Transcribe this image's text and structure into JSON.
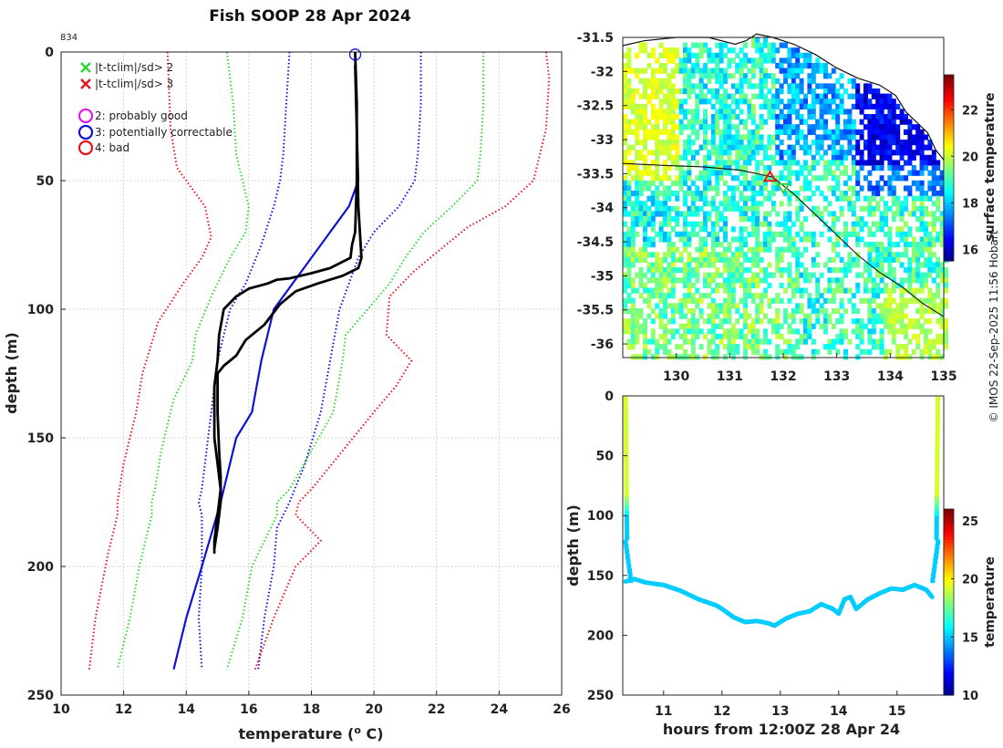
{
  "title": "Fish SOOP 28 Apr 2024",
  "profile_id": "834",
  "credit": "© IMOS 22-Sep-2025 11:56 Hobart",
  "colors": {
    "red": "#e8141b",
    "green": "#2fd633",
    "blue": "#1010d8",
    "black": "#000000",
    "magenta": "#e61ae6",
    "grid": "#c8c8c8"
  },
  "chart_data": [
    {
      "type": "line",
      "name": "profile",
      "xlabel": "temperature (",
      "xlabel_sup": "o",
      "xlabel_suffix": " C)",
      "ylabel": "depth (m)",
      "xlim": [
        10,
        26
      ],
      "ylim": [
        250,
        0
      ],
      "xticks": [
        "10",
        "12",
        "14",
        "16",
        "18",
        "20",
        "22",
        "24",
        "26"
      ],
      "yticks": [
        "0",
        "50",
        "100",
        "150",
        "200",
        "250"
      ],
      "grid": true,
      "legend": [
        {
          "symbol": "x",
          "color": "#2fd633",
          "label": "|t-tclim|/sd> 2"
        },
        {
          "symbol": "x",
          "color": "#e8141b",
          "label": "|t-tclim|/sd> 3"
        },
        {
          "symbol": "o",
          "color": "#e61ae6",
          "label": "2: probably good"
        },
        {
          "symbol": "o",
          "color": "#1010d8",
          "label": "3: potentially correctable"
        },
        {
          "symbol": "o",
          "color": "#e8141b",
          "label": "4: bad"
        }
      ],
      "series": [
        {
          "name": "clim mean",
          "style": "solid",
          "color": "#1010d8",
          "points": [
            [
              19.4,
              0
            ],
            [
              19.4,
              5
            ],
            [
              19.45,
              30
            ],
            [
              19.5,
              50
            ],
            [
              19.2,
              60
            ],
            [
              18.6,
              70
            ],
            [
              18.0,
              80
            ],
            [
              17.4,
              90
            ],
            [
              16.8,
              100
            ],
            [
              16.4,
              120
            ],
            [
              16.1,
              140
            ],
            [
              15.6,
              150
            ],
            [
              15.1,
              175
            ],
            [
              14.5,
              200
            ],
            [
              14.0,
              220
            ],
            [
              13.6,
              240
            ]
          ]
        },
        {
          "name": "-1 sd",
          "style": "dotted",
          "color": "#1010d8",
          "points": [
            [
              17.3,
              0
            ],
            [
              17.2,
              20
            ],
            [
              17.1,
              40
            ],
            [
              17.0,
              50
            ],
            [
              16.8,
              60
            ],
            [
              16.4,
              75
            ],
            [
              15.9,
              90
            ],
            [
              15.4,
              100
            ],
            [
              15.0,
              120
            ],
            [
              14.8,
              140
            ],
            [
              14.6,
              160
            ],
            [
              14.5,
              170
            ],
            [
              14.4,
              175
            ],
            [
              14.5,
              180
            ],
            [
              14.5,
              200
            ],
            [
              14.4,
              220
            ],
            [
              14.5,
              240
            ]
          ]
        },
        {
          "name": "+1 sd",
          "style": "dotted",
          "color": "#1010d8",
          "points": [
            [
              21.5,
              0
            ],
            [
              21.5,
              20
            ],
            [
              21.4,
              40
            ],
            [
              21.3,
              50
            ],
            [
              20.8,
              60
            ],
            [
              20.0,
              70
            ],
            [
              19.5,
              80
            ],
            [
              19.2,
              90
            ],
            [
              18.9,
              100
            ],
            [
              18.6,
              120
            ],
            [
              18.3,
              140
            ],
            [
              17.8,
              160
            ],
            [
              17.3,
              175
            ],
            [
              16.9,
              185
            ],
            [
              16.8,
              200
            ],
            [
              16.5,
              220
            ],
            [
              16.3,
              240
            ]
          ]
        },
        {
          "name": "-2 sd",
          "style": "dotted",
          "color": "#2fd633",
          "points": [
            [
              15.3,
              0
            ],
            [
              15.5,
              20
            ],
            [
              15.6,
              40
            ],
            [
              15.9,
              55
            ],
            [
              16.0,
              60
            ],
            [
              15.9,
              70
            ],
            [
              15.4,
              80
            ],
            [
              14.8,
              95
            ],
            [
              14.3,
              110
            ],
            [
              14.2,
              120
            ],
            [
              13.6,
              135
            ],
            [
              13.2,
              155
            ],
            [
              13.0,
              170
            ],
            [
              12.9,
              175
            ],
            [
              12.9,
              180
            ],
            [
              12.5,
              200
            ],
            [
              12.2,
              220
            ],
            [
              11.8,
              240
            ]
          ]
        },
        {
          "name": "+2 sd",
          "style": "dotted",
          "color": "#2fd633",
          "points": [
            [
              23.5,
              0
            ],
            [
              23.5,
              20
            ],
            [
              23.4,
              40
            ],
            [
              23.3,
              50
            ],
            [
              22.5,
              60
            ],
            [
              21.6,
              70
            ],
            [
              21.0,
              80
            ],
            [
              20.5,
              90
            ],
            [
              19.8,
              100
            ],
            [
              19.1,
              110
            ],
            [
              19.0,
              120
            ],
            [
              18.7,
              140
            ],
            [
              18.0,
              155
            ],
            [
              17.3,
              170
            ],
            [
              16.9,
              175
            ],
            [
              16.9,
              180
            ],
            [
              16.1,
              200
            ],
            [
              15.8,
              220
            ],
            [
              15.3,
              240
            ]
          ]
        },
        {
          "name": "-3 sd",
          "style": "dotted",
          "color": "#e8141b",
          "points": [
            [
              13.4,
              0
            ],
            [
              13.5,
              30
            ],
            [
              13.7,
              45
            ],
            [
              14.0,
              50
            ],
            [
              14.6,
              60
            ],
            [
              14.8,
              72
            ],
            [
              14.5,
              80
            ],
            [
              13.9,
              90
            ],
            [
              13.1,
              105
            ],
            [
              12.6,
              125
            ],
            [
              12.4,
              140
            ],
            [
              12.0,
              160
            ],
            [
              11.8,
              175
            ],
            [
              11.8,
              180
            ],
            [
              11.5,
              195
            ],
            [
              11.1,
              220
            ],
            [
              10.9,
              240
            ]
          ]
        },
        {
          "name": "+3 sd",
          "style": "dotted",
          "color": "#e8141b",
          "points": [
            [
              25.5,
              0
            ],
            [
              25.6,
              10
            ],
            [
              25.5,
              30
            ],
            [
              25.1,
              50
            ],
            [
              24.2,
              60
            ],
            [
              23.0,
              68
            ],
            [
              22.3,
              75
            ],
            [
              21.3,
              85
            ],
            [
              20.5,
              95
            ],
            [
              20.4,
              110
            ],
            [
              21.2,
              120
            ],
            [
              20.7,
              130
            ],
            [
              20.0,
              140
            ],
            [
              19.0,
              155
            ],
            [
              18.0,
              170
            ],
            [
              17.6,
              175
            ],
            [
              17.5,
              180
            ],
            [
              18.3,
              190
            ],
            [
              17.5,
              200
            ],
            [
              16.8,
              220
            ],
            [
              16.2,
              240
            ]
          ]
        },
        {
          "name": "profile down",
          "style": "solid",
          "color": "#000000",
          "points": [
            [
              19.4,
              0
            ],
            [
              19.45,
              20
            ],
            [
              19.45,
              50
            ],
            [
              19.4,
              70
            ],
            [
              19.3,
              75
            ],
            [
              19.25,
              80
            ],
            [
              18.6,
              84
            ],
            [
              18.0,
              86
            ],
            [
              17.3,
              88
            ],
            [
              16.9,
              88.5
            ],
            [
              16.6,
              90
            ],
            [
              16.0,
              92
            ],
            [
              15.6,
              95
            ],
            [
              15.2,
              100
            ],
            [
              15.05,
              110
            ],
            [
              15.0,
              120
            ],
            [
              14.9,
              130
            ],
            [
              14.9,
              140
            ],
            [
              14.9,
              150
            ],
            [
              15.0,
              160
            ],
            [
              15.1,
              170
            ],
            [
              15.0,
              180
            ],
            [
              14.9,
              190
            ],
            [
              14.9,
              195
            ]
          ]
        },
        {
          "name": "profile up",
          "style": "solid",
          "color": "#000000",
          "points": [
            [
              14.9,
              193
            ],
            [
              15.0,
              185
            ],
            [
              15.1,
              175
            ],
            [
              15.1,
              165
            ],
            [
              15.05,
              155
            ],
            [
              15.0,
              140
            ],
            [
              15.0,
              125
            ],
            [
              15.2,
              122
            ],
            [
              15.6,
              118
            ],
            [
              15.9,
              112
            ],
            [
              16.5,
              106
            ],
            [
              17.0,
              98
            ],
            [
              17.5,
              93
            ],
            [
              18.2,
              90
            ],
            [
              19.0,
              87
            ],
            [
              19.5,
              84
            ],
            [
              19.6,
              80
            ],
            [
              19.5,
              60
            ],
            [
              19.45,
              30
            ],
            [
              19.4,
              5
            ]
          ]
        }
      ],
      "marker": {
        "symbol": "o",
        "color": "#1010d8",
        "x": 19.4,
        "y": 1
      }
    },
    {
      "type": "heatmap",
      "name": "sst-map",
      "xlim": [
        129,
        135
      ],
      "ylim": [
        -36.2,
        -31.5
      ],
      "xticks": [
        "130",
        "131",
        "132",
        "133",
        "134",
        "135"
      ],
      "yticks": [
        "-31.5",
        "-32",
        "-32.5",
        "-33",
        "-33.5",
        "-34",
        "-34.5",
        "-35",
        "-35.5",
        "-36"
      ],
      "colorbar": {
        "label": "surface temperature",
        "range": [
          15.5,
          23.5
        ],
        "ticks": [
          "16",
          "18",
          "20",
          "22"
        ]
      },
      "markers": [
        {
          "symbol": "triangle",
          "color": "#e8141b",
          "lon": 131.75,
          "lat": -33.55
        },
        {
          "symbol": "triangle-down",
          "color": "#2fd633",
          "lon": 132.0,
          "lat": -33.7
        }
      ]
    },
    {
      "type": "scatter",
      "name": "section",
      "xlabel": "hours from 12:00Z 28 Apr 24",
      "ylabel": "depth (m)",
      "xlim": [
        10.3,
        15.8
      ],
      "ylim": [
        250,
        0
      ],
      "xticks": [
        "11",
        "12",
        "13",
        "14",
        "15"
      ],
      "yticks": [
        "0",
        "50",
        "100",
        "150",
        "200",
        "250"
      ],
      "colorbar": {
        "label": "temperature",
        "range": [
          10,
          26
        ],
        "ticks": [
          "10",
          "15",
          "20",
          "25"
        ]
      },
      "bottom_trace": [
        [
          10.35,
          155
        ],
        [
          10.5,
          153
        ],
        [
          10.7,
          156
        ],
        [
          11.0,
          158
        ],
        [
          11.3,
          163
        ],
        [
          11.6,
          170
        ],
        [
          11.9,
          175
        ],
        [
          12.0,
          178
        ],
        [
          12.2,
          185
        ],
        [
          12.4,
          189
        ],
        [
          12.6,
          188
        ],
        [
          12.8,
          190
        ],
        [
          12.9,
          192
        ],
        [
          13.1,
          186
        ],
        [
          13.3,
          182
        ],
        [
          13.5,
          180
        ],
        [
          13.7,
          174
        ],
        [
          13.9,
          178
        ],
        [
          14.0,
          182
        ],
        [
          14.1,
          170
        ],
        [
          14.2,
          168
        ],
        [
          14.3,
          178
        ],
        [
          14.5,
          170
        ],
        [
          14.7,
          165
        ],
        [
          14.9,
          161
        ],
        [
          15.1,
          162
        ],
        [
          15.3,
          158
        ],
        [
          15.5,
          162
        ],
        [
          15.6,
          168
        ]
      ]
    }
  ]
}
